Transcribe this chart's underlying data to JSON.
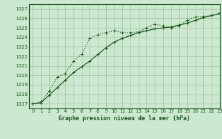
{
  "title": "Graphe pression niveau de la mer (hPa)",
  "bg_color": "#cce8d0",
  "grid_color": "#aaccaa",
  "line_color": "#1a5c1a",
  "xlim": [
    -0.5,
    23
  ],
  "ylim": [
    1016.5,
    1027.5
  ],
  "yticks": [
    1017,
    1018,
    1019,
    1020,
    1021,
    1022,
    1023,
    1024,
    1025,
    1026,
    1027
  ],
  "xticks": [
    0,
    1,
    2,
    3,
    4,
    5,
    6,
    7,
    8,
    9,
    10,
    11,
    12,
    13,
    14,
    15,
    16,
    17,
    18,
    19,
    20,
    21,
    22,
    23
  ],
  "line_solid_x": [
    0,
    1,
    2,
    3,
    4,
    5,
    6,
    7,
    8,
    9,
    10,
    11,
    12,
    13,
    14,
    15,
    16,
    17,
    18,
    19,
    20,
    21,
    22,
    23
  ],
  "line_solid_y": [
    1017.0,
    1017.1,
    1017.9,
    1018.7,
    1019.5,
    1020.3,
    1020.9,
    1021.5,
    1022.2,
    1022.9,
    1023.5,
    1023.9,
    1024.2,
    1024.5,
    1024.7,
    1024.9,
    1025.0,
    1025.1,
    1025.3,
    1025.5,
    1025.8,
    1026.1,
    1026.3,
    1026.5
  ],
  "line_dot_x": [
    0,
    1,
    2,
    3,
    4,
    5,
    6,
    7,
    8,
    9,
    10,
    11,
    12,
    13,
    14,
    15,
    16,
    17,
    18,
    19,
    20,
    21,
    22,
    23
  ],
  "line_dot_y": [
    1017.0,
    1017.2,
    1018.3,
    1019.8,
    1020.2,
    1021.5,
    1022.2,
    1023.9,
    1024.3,
    1024.5,
    1024.7,
    1024.5,
    1024.5,
    1024.6,
    1025.0,
    1025.4,
    1025.2,
    1025.0,
    1025.2,
    1025.8,
    1026.2,
    1026.2,
    1026.3,
    1026.6
  ]
}
